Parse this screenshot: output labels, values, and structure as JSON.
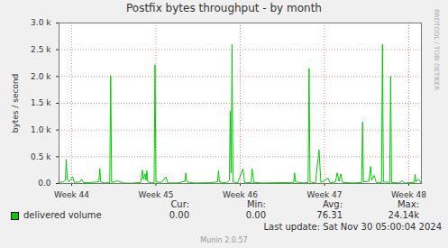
{
  "chart_data": {
    "type": "line",
    "title": "Postfix bytes throughput - by month",
    "y_label": "bytes / second",
    "x": [
      43.85,
      43.9,
      43.925,
      43.936,
      43.947,
      43.968,
      44.011,
      44.033,
      44.097,
      44.119,
      44.14,
      44.226,
      44.323,
      44.334,
      44.345,
      44.388,
      44.452,
      44.463,
      44.474,
      44.549,
      44.603,
      44.71,
      44.818,
      44.839,
      44.85,
      44.871,
      44.882,
      44.892,
      44.903,
      44.957,
      44.978,
      44.989,
      45.0,
      45.065,
      45.119,
      45.14,
      45.248,
      45.345,
      45.355,
      45.366,
      45.463,
      45.624,
      45.731,
      45.742,
      45.753,
      45.839,
      45.871,
      45.882,
      45.892,
      45.903,
      45.914,
      45.968,
      46.032,
      46.054,
      46.129,
      46.14,
      46.161,
      46.269,
      46.431,
      46.634,
      46.645,
      46.656,
      46.753,
      46.806,
      46.817,
      46.828,
      46.892,
      46.935,
      46.957,
      47.043,
      47.065,
      47.13,
      47.151,
      47.173,
      47.194,
      47.215,
      47.344,
      47.441,
      47.452,
      47.462,
      47.527,
      47.548,
      47.559,
      47.591,
      47.613,
      47.677,
      47.688,
      47.699,
      47.774,
      47.785,
      47.796,
      47.882,
      47.925,
      47.946,
      48.065,
      48.075,
      48.086,
      48.118,
      48.15
    ],
    "series": [
      {
        "name": "delivered volume",
        "color": "#00cc00",
        "values": [
          20,
          30,
          60,
          450,
          100,
          30,
          120,
          20,
          30,
          80,
          15,
          20,
          30,
          280,
          30,
          10,
          15,
          2020,
          20,
          50,
          10,
          5,
          20,
          250,
          80,
          180,
          60,
          240,
          30,
          10,
          20,
          2220,
          30,
          20,
          120,
          10,
          10,
          40,
          200,
          30,
          10,
          15,
          30,
          240,
          30,
          10,
          60,
          1350,
          200,
          2600,
          30,
          10,
          270,
          10,
          20,
          280,
          20,
          10,
          15,
          20,
          200,
          30,
          10,
          20,
          2150,
          30,
          10,
          630,
          20,
          100,
          15,
          30,
          200,
          40,
          180,
          20,
          10,
          20,
          1150,
          30,
          40,
          320,
          60,
          150,
          20,
          20,
          2600,
          30,
          20,
          2000,
          20,
          10,
          50,
          10,
          20,
          170,
          30,
          80,
          0
        ]
      }
    ],
    "xlim": [
      43.85,
      48.15
    ],
    "xticks": [
      {
        "value": 44,
        "label": "Week 44"
      },
      {
        "value": 45,
        "label": "Week 45"
      },
      {
        "value": 46,
        "label": "Week 46"
      },
      {
        "value": 47,
        "label": "Week 47"
      },
      {
        "value": 48,
        "label": "Week 48"
      }
    ],
    "ylim": [
      0,
      3000
    ],
    "yticks": [
      {
        "value": 0,
        "label": "0.0"
      },
      {
        "value": 500,
        "label": "0.5 k"
      },
      {
        "value": 1000,
        "label": "1.0 k"
      },
      {
        "value": 1500,
        "label": "1.5 k"
      },
      {
        "value": 2000,
        "label": "2.0 k"
      },
      {
        "value": 2500,
        "label": "2.5 k"
      },
      {
        "value": 3000,
        "label": "3.0 k"
      }
    ],
    "grid": true,
    "legend": "bottom",
    "stats": {
      "headers": [
        "Cur:",
        "Min:",
        "Avg:",
        "Max:"
      ],
      "values": [
        {
          "value": 0,
          "label": "0.00"
        },
        {
          "value": 0,
          "label": "0.00"
        },
        {
          "value": 76.31,
          "label": "76.31"
        },
        {
          "value": 24140,
          "label": "24.14k"
        }
      ]
    },
    "last_update": "Last update: Sat Nov 30 05:00:04 2024",
    "footer": "Munin 2.0.57",
    "side_text": "RRDTOOL / TOBI OETIKER"
  }
}
